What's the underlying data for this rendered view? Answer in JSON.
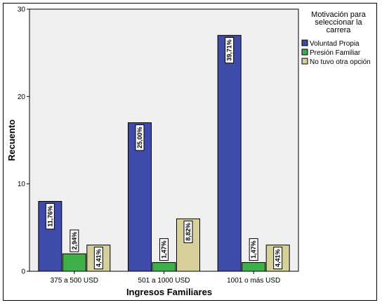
{
  "chart_data": {
    "type": "bar",
    "xlabel": "Ingresos Familiares",
    "ylabel": "Recuento",
    "ylim": [
      0,
      30
    ],
    "yticks": [
      0,
      10,
      20,
      30
    ],
    "grid": false,
    "legend_placement": "right",
    "legend_title_lines": [
      "Motivación  para",
      "seleccionar la",
      "carrera"
    ],
    "categories": [
      "375 a 500 USD",
      "501 a 1000 USD",
      "1001 o más USD"
    ],
    "series": [
      {
        "name": "Voluntad Propia",
        "color": "#3f4ba8",
        "values": [
          8,
          17,
          27
        ],
        "labels": [
          "11,76%",
          "25,00%",
          "39,71%"
        ]
      },
      {
        "name": "Presión Familiar",
        "color": "#3fae49",
        "values": [
          2,
          1,
          1
        ],
        "labels": [
          "2,94%",
          "1,47%",
          "1,47%"
        ]
      },
      {
        "name": "No tuvo otra opción",
        "color": "#d8d09b",
        "values": [
          3,
          6,
          3
        ],
        "labels": [
          "4,41%",
          "8,82%",
          "4,41%"
        ]
      }
    ],
    "plot_background": "#f0f0f0"
  }
}
